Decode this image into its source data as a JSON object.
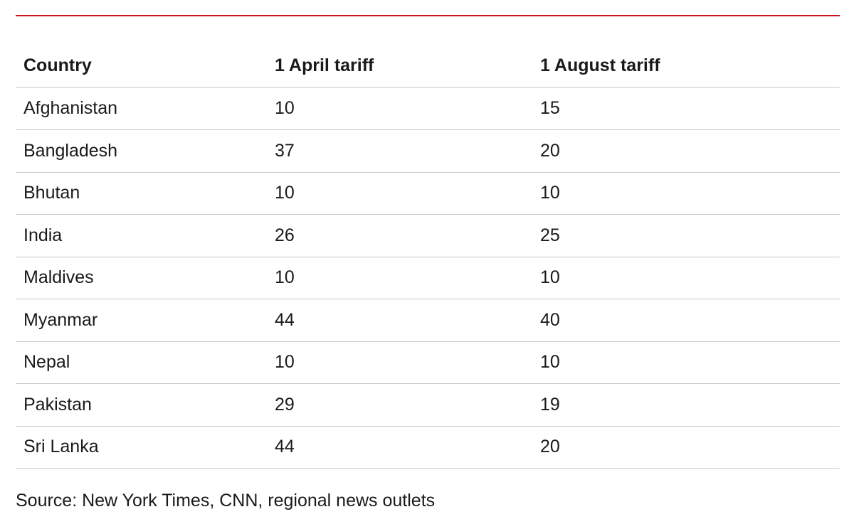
{
  "colors": {
    "accent_rule": "#d0131a",
    "row_divider": "#c8c8c8",
    "text": "#1a1a1a",
    "background": "#ffffff"
  },
  "chart_data": {
    "type": "table",
    "columns": [
      "Country",
      "1 April tariff",
      "1 August tariff"
    ],
    "rows": [
      [
        "Afghanistan",
        "10",
        "15"
      ],
      [
        "Bangladesh",
        "37",
        "20"
      ],
      [
        "Bhutan",
        "10",
        "10"
      ],
      [
        "India",
        "26",
        "25"
      ],
      [
        "Maldives",
        "10",
        "10"
      ],
      [
        "Myanmar",
        "44",
        "40"
      ],
      [
        "Nepal",
        "10",
        "10"
      ],
      [
        "Pakistan",
        "29",
        "19"
      ],
      [
        "Sri Lanka",
        "44",
        "20"
      ]
    ],
    "source": "Source: New York Times, CNN, regional news outlets"
  }
}
